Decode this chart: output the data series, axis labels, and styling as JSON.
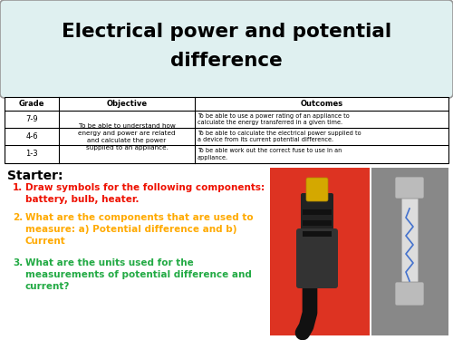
{
  "title_line1": "Electrical power and potential",
  "title_line2": "difference",
  "title_bg": "#dff0f0",
  "bg_color": "#ffffff",
  "table_headers": [
    "Grade",
    "Objective",
    "Outcomes"
  ],
  "table_grades": [
    "7-9",
    "4-6",
    "1-3"
  ],
  "table_objective": "To be able to understand how\nenergy and power are related\nand calculate the power\nsupplied to an appliance.",
  "table_outcomes": [
    "To be able to use a power rating of an appliance to\ncalculate the energy transferred in a given time.",
    "To be able to calculate the electrical power supplied to\na device from its current potential difference.",
    "To be able work out the correct fuse to use in an\nappliance."
  ],
  "starter_label": "Starter:",
  "q1_num": "1.",
  "q1_text": "Draw symbols for the following components:\nbattery, bulb, heater.",
  "q1_color": "#ee1100",
  "q2_num": "2.",
  "q2_text": "What are the components that are used to\nmeasure: a) Potential difference and b)\nCurrent",
  "q2_color": "#ffaa00",
  "q3_num": "3.",
  "q3_text": "What are the units used for the\nmeasurements of potential difference and\ncurrent?",
  "q3_color": "#22aa44",
  "img_red_bg": "#dd3322",
  "img_gray_bg": "#888888"
}
